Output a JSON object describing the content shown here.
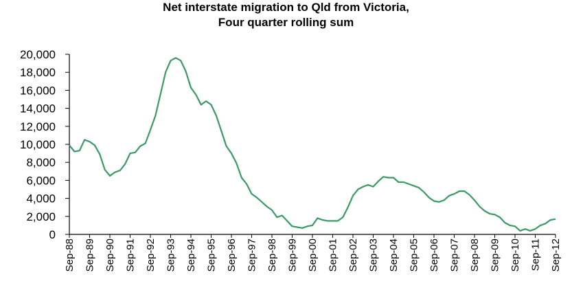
{
  "chart_data": {
    "type": "line",
    "title": "Net interstate migration to Qld from Victoria,",
    "subtitle": "Four quarter rolling sum",
    "xlabel": "",
    "ylabel": "",
    "ylim": [
      0,
      20000
    ],
    "y_ticks": [
      "0",
      "2,000",
      "4,000",
      "6,000",
      "8,000",
      "10,000",
      "12,000",
      "14,000",
      "16,000",
      "18,000",
      "20,000"
    ],
    "x_tick_labels": [
      "Sep-88",
      "Sep-89",
      "Sep-90",
      "Sep-91",
      "Sep-92",
      "Sep-93",
      "Sep-94",
      "Sep-95",
      "Sep-96",
      "Sep-97",
      "Sep-98",
      "Sep-99",
      "Sep-00",
      "Sep-01",
      "Sep-02",
      "Sep-03",
      "Sep-04",
      "Sep-05",
      "Sep-06",
      "Sep-07",
      "Sep-08",
      "Sep-09",
      "Sep-10",
      "Sep-11",
      "Sep-12"
    ],
    "grid": "horizontal",
    "legend": "none",
    "line_color": "#3a9a64",
    "series": [
      {
        "x": [
          "Sep-88",
          "Dec-88",
          "Mar-89",
          "Jun-89",
          "Sep-89",
          "Dec-89",
          "Mar-90",
          "Jun-90",
          "Sep-90",
          "Dec-90",
          "Mar-91",
          "Jun-91",
          "Sep-91",
          "Dec-91",
          "Mar-92",
          "Jun-92",
          "Sep-92",
          "Dec-92",
          "Mar-93",
          "Jun-93",
          "Sep-93",
          "Dec-93",
          "Mar-94",
          "Jun-94",
          "Sep-94",
          "Dec-94",
          "Mar-95",
          "Jun-95",
          "Sep-95",
          "Dec-95",
          "Mar-96",
          "Jun-96",
          "Sep-96",
          "Dec-96",
          "Mar-97",
          "Jun-97",
          "Sep-97",
          "Dec-97",
          "Mar-98",
          "Jun-98",
          "Sep-98",
          "Dec-98",
          "Mar-99",
          "Jun-99",
          "Sep-99",
          "Dec-99",
          "Mar-00",
          "Jun-00",
          "Sep-00",
          "Dec-00",
          "Mar-01",
          "Jun-01",
          "Sep-01",
          "Dec-01",
          "Mar-02",
          "Jun-02",
          "Sep-02",
          "Dec-02",
          "Mar-03",
          "Jun-03",
          "Sep-03",
          "Dec-03",
          "Mar-04",
          "Jun-04",
          "Sep-04",
          "Dec-04",
          "Mar-05",
          "Jun-05",
          "Sep-05",
          "Dec-05",
          "Mar-06",
          "Jun-06",
          "Sep-06",
          "Dec-06",
          "Mar-07",
          "Jun-07",
          "Sep-07",
          "Dec-07",
          "Mar-08",
          "Jun-08",
          "Sep-08",
          "Dec-08",
          "Mar-09",
          "Jun-09",
          "Sep-09",
          "Dec-09",
          "Mar-10",
          "Jun-10",
          "Sep-10",
          "Dec-10",
          "Mar-11",
          "Jun-11",
          "Sep-11",
          "Dec-11",
          "Mar-12",
          "Jun-12",
          "Sep-12"
        ],
        "values": [
          9900,
          9200,
          9300,
          10500,
          10300,
          9900,
          8900,
          7200,
          6500,
          6900,
          7100,
          7800,
          9000,
          9100,
          9800,
          10100,
          11600,
          13200,
          15600,
          18000,
          19300,
          19600,
          19300,
          18100,
          16300,
          15500,
          14400,
          14800,
          14400,
          13200,
          11500,
          9800,
          9000,
          7900,
          6300,
          5600,
          4500,
          4100,
          3600,
          3100,
          2700,
          1900,
          2100,
          1500,
          900,
          800,
          700,
          900,
          1000,
          1800,
          1600,
          1500,
          1500,
          1500,
          1900,
          3000,
          4300,
          5000,
          5300,
          5500,
          5300,
          5900,
          6400,
          6300,
          6300,
          5800,
          5800,
          5600,
          5400,
          5200,
          4700,
          4100,
          3700,
          3600,
          3800,
          4300,
          4500,
          4800,
          4800,
          4400,
          3800,
          3100,
          2600,
          2300,
          2200,
          1900,
          1300,
          1000,
          900,
          400,
          600,
          400,
          600,
          1000,
          1200,
          1600,
          1700
        ]
      }
    ]
  }
}
